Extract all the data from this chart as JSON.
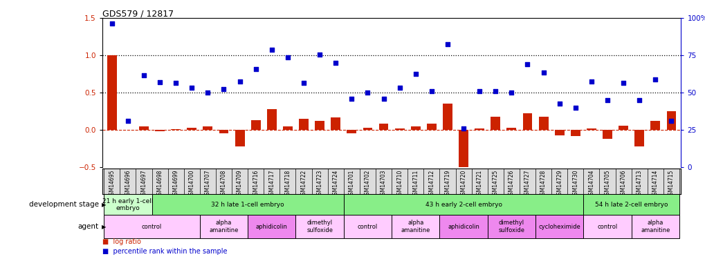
{
  "title": "GDS579 / 12817",
  "samples": [
    "GSM14695",
    "GSM14696",
    "GSM14697",
    "GSM14698",
    "GSM14699",
    "GSM14700",
    "GSM14707",
    "GSM14708",
    "GSM14709",
    "GSM14716",
    "GSM14717",
    "GSM14718",
    "GSM14722",
    "GSM14723",
    "GSM14724",
    "GSM14701",
    "GSM14702",
    "GSM14703",
    "GSM14710",
    "GSM14711",
    "GSM14712",
    "GSM14719",
    "GSM14720",
    "GSM14721",
    "GSM14725",
    "GSM14726",
    "GSM14727",
    "GSM14728",
    "GSM14729",
    "GSM14730",
    "GSM14704",
    "GSM14705",
    "GSM14706",
    "GSM14713",
    "GSM14714",
    "GSM14715"
  ],
  "log_ratio": [
    1.0,
    0.0,
    0.05,
    -0.02,
    0.01,
    0.03,
    0.05,
    -0.05,
    -0.22,
    0.13,
    0.28,
    0.05,
    0.15,
    0.12,
    0.17,
    -0.05,
    0.03,
    0.08,
    0.02,
    0.05,
    0.08,
    0.35,
    -0.52,
    0.02,
    0.18,
    0.03,
    0.22,
    0.18,
    -0.07,
    -0.08,
    0.02,
    -0.12,
    0.06,
    -0.22,
    0.12,
    0.25
  ],
  "percentile_left": [
    1.43,
    0.12,
    0.73,
    0.64,
    0.63,
    0.57,
    0.5,
    0.55,
    0.65,
    0.82,
    1.08,
    0.97,
    0.63,
    1.01,
    0.9,
    0.42,
    0.5,
    0.42,
    0.57,
    0.75,
    0.52,
    1.15,
    0.02,
    0.52,
    0.52,
    0.5,
    0.88,
    0.77,
    0.35,
    0.3,
    0.65,
    0.4,
    0.63,
    0.4,
    0.68,
    0.12
  ],
  "ylim_left": [
    -0.5,
    1.5
  ],
  "ylim_right": [
    0,
    100
  ],
  "bar_color": "#cc2200",
  "scatter_color": "#0000cc",
  "dev_stage_groups": [
    {
      "label": "21 h early 1-cell\nembryo",
      "start": 0,
      "end": 3,
      "color": "#ccffcc"
    },
    {
      "label": "32 h late 1-cell embryo",
      "start": 3,
      "end": 15,
      "color": "#88ee88"
    },
    {
      "label": "43 h early 2-cell embryo",
      "start": 15,
      "end": 30,
      "color": "#88ee88"
    },
    {
      "label": "54 h late 2-cell embryo",
      "start": 30,
      "end": 36,
      "color": "#88ee88"
    }
  ],
  "agent_groups": [
    {
      "label": "control",
      "start": 0,
      "end": 6,
      "color": "#ffccff"
    },
    {
      "label": "alpha\namanitine",
      "start": 6,
      "end": 9,
      "color": "#ffccff"
    },
    {
      "label": "aphidicolin",
      "start": 9,
      "end": 12,
      "color": "#ee88ee"
    },
    {
      "label": "dimethyl\nsulfoxide",
      "start": 12,
      "end": 15,
      "color": "#ffccff"
    },
    {
      "label": "control",
      "start": 15,
      "end": 18,
      "color": "#ffccff"
    },
    {
      "label": "alpha\namanitine",
      "start": 18,
      "end": 21,
      "color": "#ffccff"
    },
    {
      "label": "aphidicolin",
      "start": 21,
      "end": 24,
      "color": "#ee88ee"
    },
    {
      "label": "dimethyl\nsulfoxide",
      "start": 24,
      "end": 27,
      "color": "#ee88ee"
    },
    {
      "label": "cycloheximide",
      "start": 27,
      "end": 30,
      "color": "#ee88ee"
    },
    {
      "label": "control",
      "start": 30,
      "end": 33,
      "color": "#ffccff"
    },
    {
      "label": "alpha\namanitine",
      "start": 33,
      "end": 36,
      "color": "#ffccff"
    }
  ],
  "sample_label_bg": "#dddddd",
  "tick_label_fontsize": 5.5,
  "bar_width": 0.6,
  "scatter_size": 16
}
